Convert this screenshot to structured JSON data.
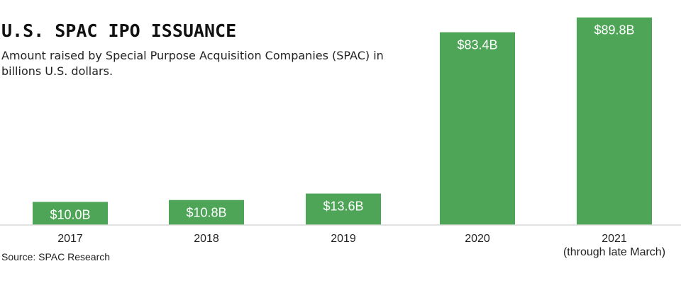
{
  "title": "U.S. SPAC IPO ISSUANCE",
  "subtitle": "Amount raised by Special Purpose Acquisition Companies (SPAC) in billions U.S. dollars.",
  "source": "Source: SPAC Research",
  "colors": {
    "bar": "#4ea557",
    "baseline": "#d9d9d9"
  },
  "chart_data": {
    "type": "bar",
    "title": "U.S. SPAC IPO ISSUANCE",
    "subtitle": "Amount raised by Special Purpose Acquisition Companies (SPAC) in billions U.S. dollars.",
    "categories": [
      "2017",
      "2018",
      "2019",
      "2020",
      "2021\n(through late March)"
    ],
    "values": [
      10.0,
      10.8,
      13.6,
      83.4,
      89.8
    ],
    "value_labels": [
      "$10.0B",
      "$10.8B",
      "$13.6B",
      "$83.4B",
      "$89.8B"
    ],
    "xlabel": "",
    "ylabel": "",
    "ylim": [
      0,
      90
    ],
    "grid": false,
    "legend": "none"
  }
}
